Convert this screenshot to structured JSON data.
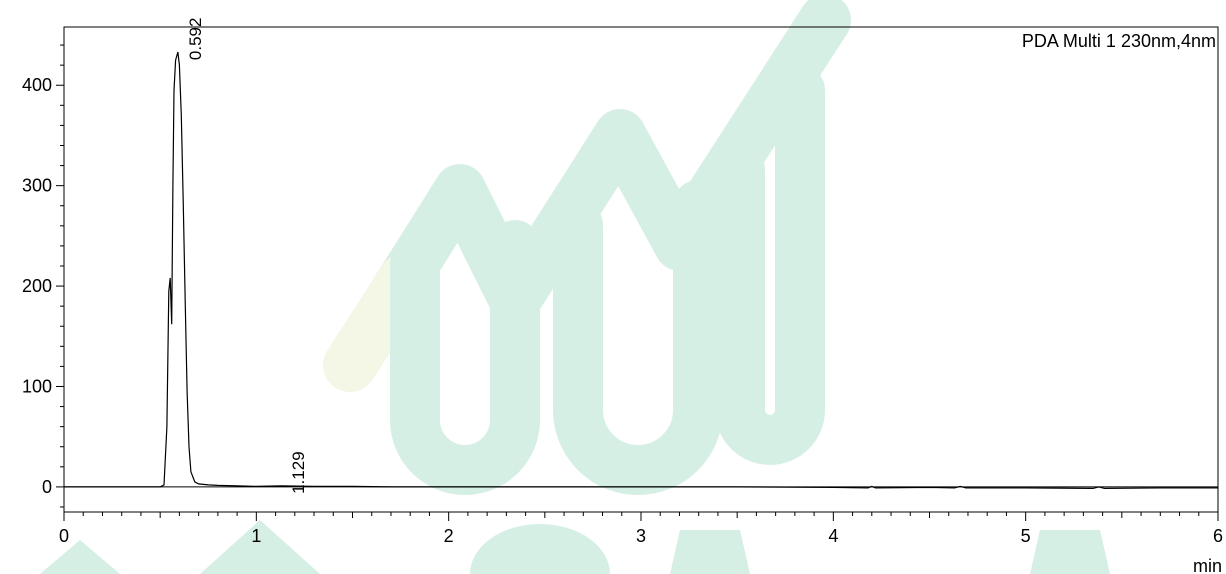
{
  "chart_data": {
    "type": "line",
    "legend": "PDA Multi 1 230nm,4nm",
    "xlabel": "min",
    "ylabel": "",
    "xlim": [
      0,
      6
    ],
    "ylim": [
      -25,
      458
    ],
    "x_ticks": [
      "0",
      "1",
      "2",
      "3",
      "4",
      "5",
      "6"
    ],
    "y_ticks": [
      "0",
      "100",
      "200",
      "300",
      "400"
    ],
    "peaks": [
      {
        "label": "0.592",
        "x": 0.592,
        "y": 433
      },
      {
        "label": "1.129",
        "x": 1.129,
        "y": 1
      }
    ],
    "series": [
      {
        "x": [
          0,
          0.3,
          0.5,
          0.52,
          0.535,
          0.545,
          0.552,
          0.56,
          0.566,
          0.572,
          0.58,
          0.592,
          0.6,
          0.61,
          0.62,
          0.63,
          0.64,
          0.65,
          0.66,
          0.68,
          0.7,
          0.75,
          0.8,
          0.9,
          1.0,
          1.129,
          1.3,
          1.5,
          1.7,
          1.9,
          2.1,
          2.5,
          3.0,
          3.5,
          4.0,
          4.18,
          4.2,
          4.22,
          4.5,
          4.63,
          4.66,
          4.69,
          5.0,
          5.35,
          5.38,
          5.41,
          5.7,
          6.0
        ],
        "y": [
          0,
          0,
          0,
          2,
          60,
          195,
          208,
          162,
          300,
          395,
          425,
          433,
          420,
          370,
          285,
          185,
          95,
          40,
          15,
          5,
          3,
          2,
          1.5,
          1,
          0.5,
          1,
          0.5,
          0.5,
          0,
          0,
          0,
          0,
          0,
          0,
          -0.5,
          -1,
          0.5,
          -1,
          -0.5,
          -1,
          0.5,
          -1,
          -1,
          -1.5,
          0,
          -1.5,
          -1,
          -1
        ]
      }
    ]
  },
  "watermark": {
    "colors": [
      "#d6efe4",
      "#f4f6e6"
    ]
  }
}
